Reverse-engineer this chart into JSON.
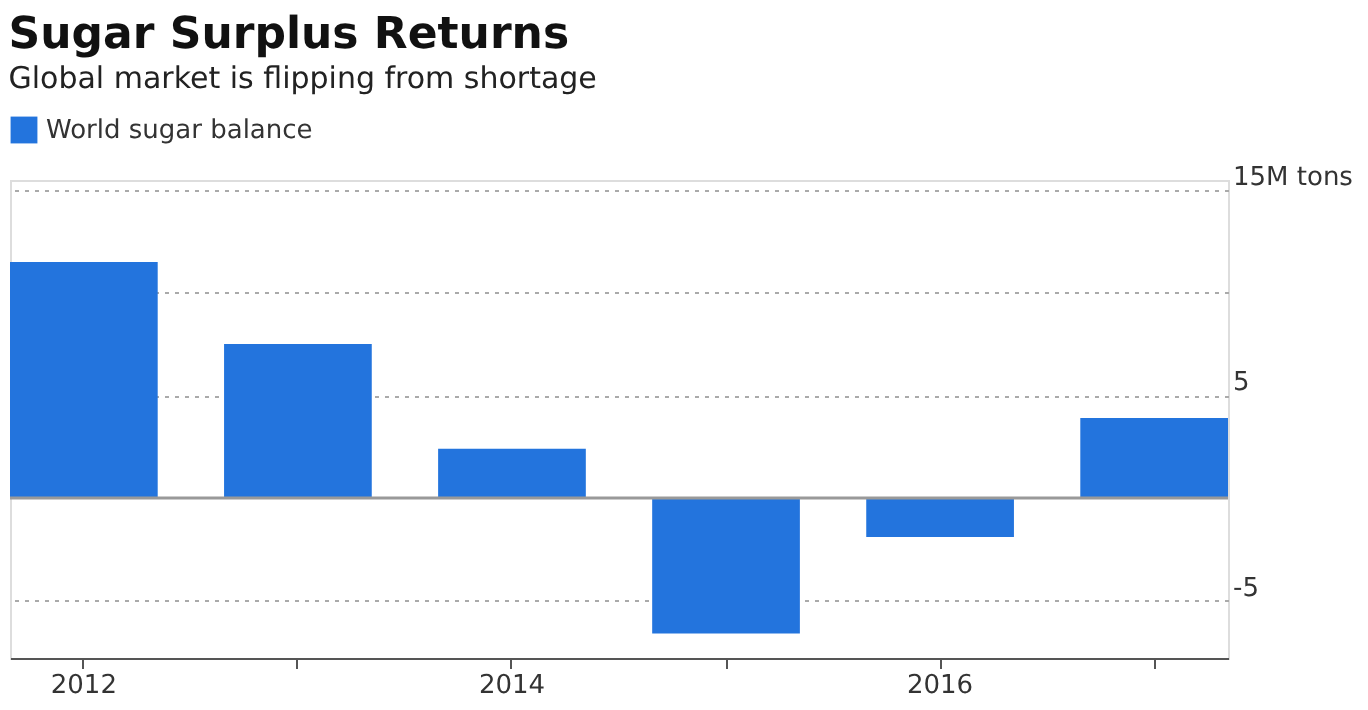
{
  "chart_data": {
    "type": "bar",
    "title": "Sugar Surplus Returns",
    "subtitle": "Global market is flipping from shortage",
    "categories": [
      "2012",
      null,
      "2014",
      null,
      "2016",
      null
    ],
    "series": [
      {
        "name": "World sugar balance",
        "color": "#2374dd",
        "values": [
          11.5,
          7.5,
          2.4,
          -6.6,
          -1.9,
          3.9
        ]
      }
    ],
    "ylim": [
      -7.8,
      15.5
    ],
    "yticks": [
      -5,
      5,
      {
        "value": 10,
        "label": null
      },
      {
        "value": 15,
        "label": "15M tons"
      }
    ],
    "ref_lines": [
      {
        "axis": "y",
        "value": 0,
        "color": "#999999"
      }
    ],
    "grid": "y",
    "legend": "top left"
  }
}
